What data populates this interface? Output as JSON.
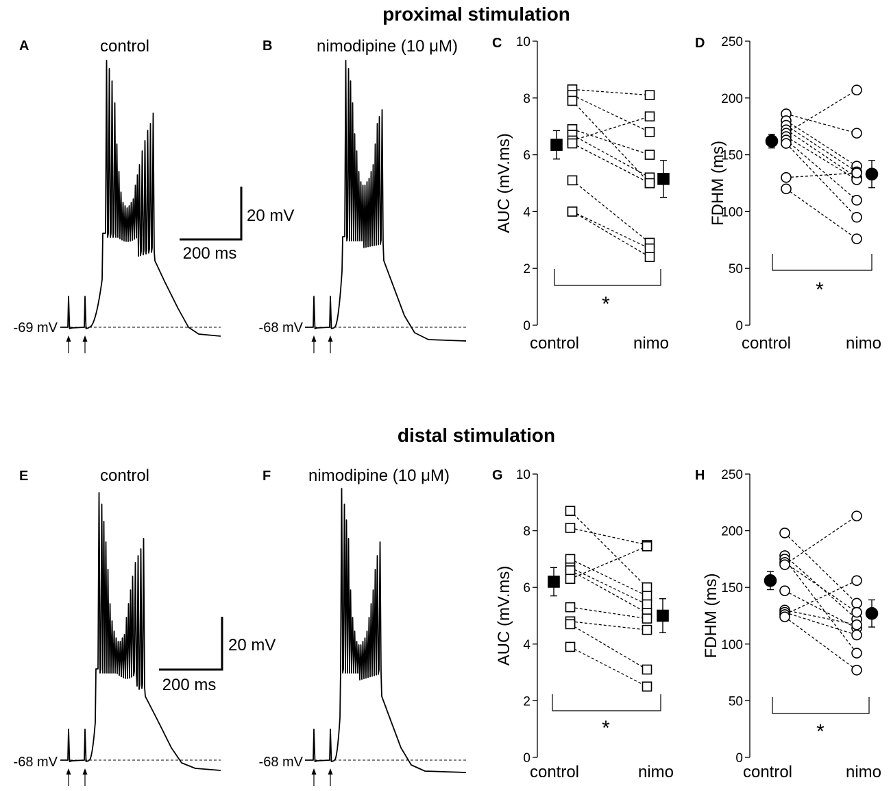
{
  "figure": {
    "top_title": "proximal stimulation",
    "bottom_title": "distal stimulation"
  },
  "traces": [
    {
      "letter": "A",
      "label": "control",
      "vm": "-69 mV"
    },
    {
      "letter": "B",
      "label": "nimodipine (10 μM)",
      "vm": "-68 mV"
    },
    {
      "letter": "E",
      "label": "control",
      "vm": "-68 mV"
    },
    {
      "letter": "F",
      "label": "nimodipine (10 μM)",
      "vm": "-68 mV"
    }
  ],
  "scale_bars": [
    {
      "amplitude": "20 mV",
      "time": "200 ms"
    },
    {
      "amplitude": "20 mV",
      "time": "200 ms"
    }
  ],
  "chart_data": [
    {
      "panel": "C",
      "type": "scatter",
      "title": "",
      "ylabel": "AUC (mV.ms)",
      "ylim": [
        0,
        10
      ],
      "yticks": [
        0,
        2,
        4,
        6,
        8,
        10
      ],
      "categories": [
        "control",
        "nimo"
      ],
      "marker": "square",
      "significance": "*",
      "pairs": [
        [
          8.3,
          8.1
        ],
        [
          8.1,
          6.8
        ],
        [
          7.9,
          5.0
        ],
        [
          6.9,
          6.0
        ],
        [
          6.7,
          5.2
        ],
        [
          6.5,
          7.35
        ],
        [
          6.4,
          5.0
        ],
        [
          5.1,
          2.9
        ],
        [
          4.0,
          2.7
        ],
        [
          4.0,
          2.4
        ]
      ],
      "mean": {
        "control": 6.35,
        "nimo": 5.15
      },
      "sem": {
        "control": 0.5,
        "nimo": 0.65
      }
    },
    {
      "panel": "D",
      "type": "scatter",
      "title": "",
      "ylabel": "FDHM (ms)",
      "ylim": [
        0,
        250
      ],
      "yticks": [
        0,
        50,
        100,
        150,
        200,
        250
      ],
      "categories": [
        "control",
        "nimo"
      ],
      "marker": "circle",
      "significance": "*",
      "pairs": [
        [
          186,
          169
        ],
        [
          180,
          140
        ],
        [
          176,
          135
        ],
        [
          172,
          130
        ],
        [
          169,
          207
        ],
        [
          166,
          128
        ],
        [
          163,
          110
        ],
        [
          160,
          95
        ],
        [
          130,
          134
        ],
        [
          120,
          76
        ]
      ],
      "mean": {
        "control": 162,
        "nimo": 133
      },
      "sem": {
        "control": 6,
        "nimo": 12
      }
    },
    {
      "panel": "G",
      "type": "scatter",
      "title": "",
      "ylabel": "AUC (mV.ms)",
      "ylim": [
        0,
        10
      ],
      "yticks": [
        0,
        2,
        4,
        6,
        8,
        10
      ],
      "categories": [
        "control",
        "nimo"
      ],
      "marker": "square",
      "significance": "*",
      "pairs": [
        [
          8.7,
          6.0
        ],
        [
          8.1,
          7.5
        ],
        [
          7.0,
          5.7
        ],
        [
          6.7,
          5.4
        ],
        [
          6.6,
          5.1
        ],
        [
          6.3,
          7.45
        ],
        [
          5.3,
          4.9
        ],
        [
          4.8,
          4.5
        ],
        [
          4.7,
          3.1
        ],
        [
          3.9,
          2.5
        ]
      ],
      "mean": {
        "control": 6.2,
        "nimo": 5.0
      },
      "sem": {
        "control": 0.5,
        "nimo": 0.6
      }
    },
    {
      "panel": "H",
      "type": "scatter",
      "title": "",
      "ylabel": "FDHM (ms)",
      "ylim": [
        0,
        250
      ],
      "yticks": [
        0,
        50,
        100,
        150,
        200,
        250
      ],
      "categories": [
        "control",
        "nimo"
      ],
      "marker": "circle",
      "significance": "*",
      "pairs": [
        [
          198,
          136
        ],
        [
          178,
          122
        ],
        [
          175,
          92
        ],
        [
          172,
          128
        ],
        [
          170,
          213
        ],
        [
          147,
          114
        ],
        [
          130,
          117
        ],
        [
          128,
          108
        ],
        [
          126,
          156
        ],
        [
          124,
          77
        ]
      ],
      "mean": {
        "control": 156,
        "nimo": 127
      },
      "sem": {
        "control": 8,
        "nimo": 12
      }
    }
  ]
}
